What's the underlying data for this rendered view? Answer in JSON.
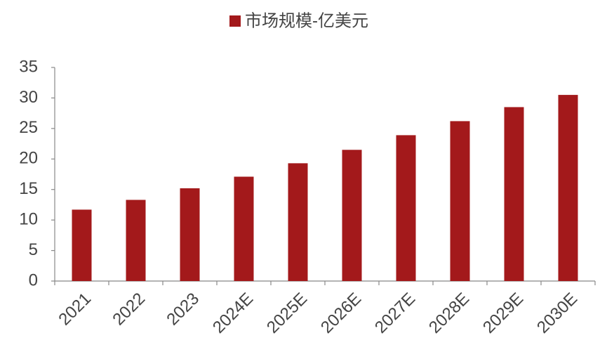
{
  "chart_data": {
    "type": "bar",
    "categories": [
      "2021",
      "2022",
      "2023",
      "2024E",
      "2025E",
      "2026E",
      "2027E",
      "2028E",
      "2029E",
      "2030E"
    ],
    "series": [
      {
        "name": "市场规模-亿美元",
        "color": "#a3191b",
        "values": [
          11.7,
          13.3,
          15.2,
          17.1,
          19.3,
          21.5,
          23.9,
          26.2,
          28.5,
          30.5
        ]
      }
    ],
    "ylim": [
      0,
      35
    ],
    "yticks": [
      0,
      5,
      10,
      15,
      20,
      25,
      30,
      35
    ],
    "grid": false,
    "legend": "top"
  }
}
